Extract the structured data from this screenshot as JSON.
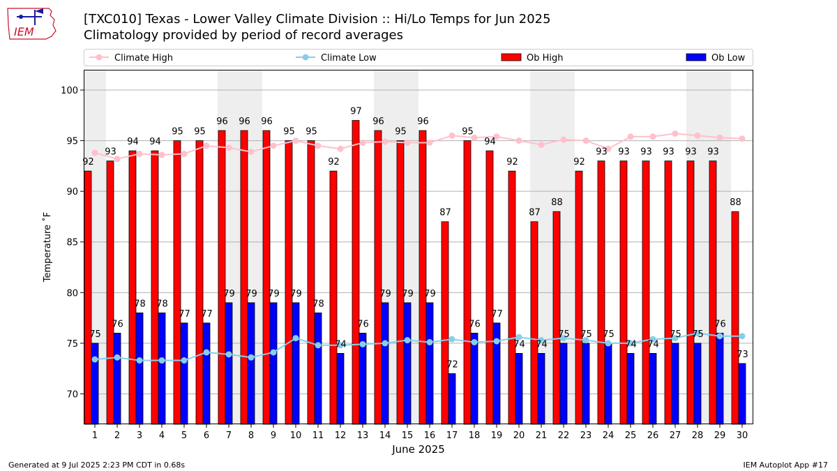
{
  "header": {
    "title": "[TXC010] Texas - Lower Valley Climate Division :: Hi/Lo Temps for Jun 2025",
    "subtitle": "Climatology provided by period of record averages",
    "logo_text": "IEM"
  },
  "footer": {
    "left": "Generated at 9 Jul 2025 2:23 PM CDT in 0.68s",
    "right": "IEM Autoplot App #17"
  },
  "colors": {
    "ob_high": "#ff0000",
    "ob_low": "#0000ff",
    "climate_high": "#ffc0cb",
    "climate_low": "#87ceeb",
    "weekend_band": "#eeeeee"
  },
  "chart_data": {
    "type": "bar",
    "xlabel": "June 2025",
    "ylabel": "Temperature ˚F",
    "ylim": [
      67,
      102
    ],
    "yticks": [
      70,
      75,
      80,
      85,
      90,
      95,
      100
    ],
    "grid": true,
    "legend_position": "top",
    "categories": [
      "1",
      "2",
      "3",
      "4",
      "5",
      "6",
      "7",
      "8",
      "9",
      "10",
      "11",
      "12",
      "13",
      "14",
      "15",
      "16",
      "17",
      "18",
      "19",
      "20",
      "21",
      "22",
      "23",
      "24",
      "25",
      "26",
      "27",
      "28",
      "29",
      "30"
    ],
    "shaded_days": [
      1,
      7,
      8,
      14,
      15,
      21,
      22,
      28,
      29
    ],
    "legend": [
      "Climate High",
      "Climate Low",
      "Ob High",
      "Ob Low"
    ],
    "series": [
      {
        "name": "Ob High",
        "kind": "bar",
        "color": "#ff0000",
        "values": [
          92,
          93,
          94,
          94,
          95,
          95,
          96,
          96,
          96,
          95,
          95,
          92,
          97,
          96,
          95,
          96,
          87,
          95,
          94,
          92,
          87,
          88,
          92,
          93,
          93,
          93,
          93,
          93,
          93,
          88
        ]
      },
      {
        "name": "Ob Low",
        "kind": "bar",
        "color": "#0000ff",
        "values": [
          75,
          76,
          78,
          78,
          77,
          77,
          79,
          79,
          79,
          79,
          78,
          74,
          76,
          79,
          79,
          79,
          72,
          76,
          77,
          74,
          74,
          75,
          75,
          75,
          74,
          74,
          75,
          75,
          76,
          73
        ]
      },
      {
        "name": "Climate High",
        "kind": "line",
        "color": "#ffc0cb",
        "values": [
          93.8,
          93.2,
          93.7,
          93.6,
          93.7,
          94.5,
          94.3,
          93.9,
          94.5,
          95.0,
          94.5,
          94.2,
          94.8,
          94.9,
          94.8,
          94.8,
          95.5,
          95.3,
          95.4,
          95.0,
          94.6,
          95.1,
          95.0,
          94.2,
          95.4,
          95.4,
          95.7,
          95.5,
          95.3,
          95.2
        ]
      },
      {
        "name": "Climate Low",
        "kind": "line",
        "color": "#87ceeb",
        "values": [
          73.4,
          73.6,
          73.3,
          73.3,
          73.3,
          74.1,
          73.9,
          73.6,
          74.1,
          75.5,
          74.8,
          74.8,
          74.9,
          75.0,
          75.3,
          75.1,
          75.4,
          75.1,
          75.2,
          75.6,
          75.3,
          75.5,
          75.3,
          75.0,
          75.0,
          75.4,
          75.5,
          76.0,
          75.7,
          75.7
        ]
      }
    ]
  }
}
